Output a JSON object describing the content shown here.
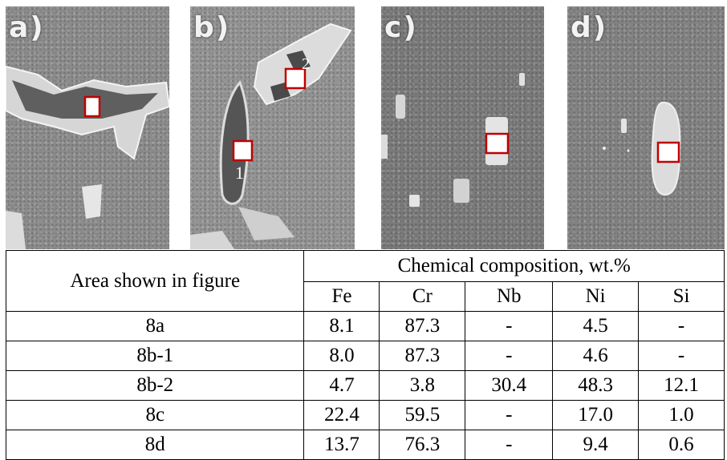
{
  "panels": [
    {
      "label": "a)"
    },
    {
      "label": "b)",
      "regions": [
        "2",
        "1"
      ]
    },
    {
      "label": "c)"
    },
    {
      "label": "d)"
    }
  ],
  "table": {
    "area_header": "Area shown in figure",
    "composition_header": "Chemical composition, wt.%",
    "elements": [
      "Fe",
      "Cr",
      "Nb",
      "Ni",
      "Si"
    ],
    "rows": [
      {
        "area": "8a",
        "values": [
          "8.1",
          "87.3",
          "-",
          "4.5",
          "-"
        ]
      },
      {
        "area": "8b-1",
        "values": [
          "8.0",
          "87.3",
          "-",
          "4.6",
          "-"
        ]
      },
      {
        "area": "8b-2",
        "values": [
          "4.7",
          "3.8",
          "30.4",
          "48.3",
          "12.1"
        ]
      },
      {
        "area": "8c",
        "values": [
          "22.4",
          "59.5",
          "-",
          "17.0",
          "1.0"
        ]
      },
      {
        "area": "8d",
        "values": [
          "13.7",
          "76.3",
          "-",
          "9.4",
          "0.6"
        ]
      }
    ]
  }
}
